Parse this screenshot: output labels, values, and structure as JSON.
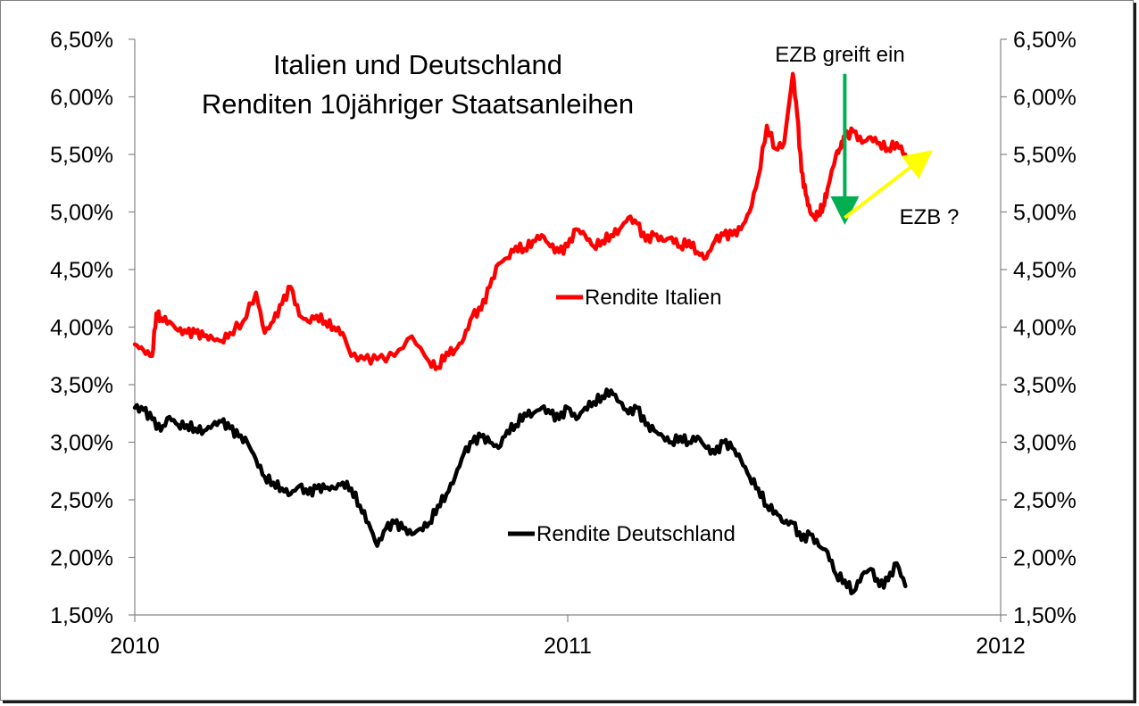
{
  "chart_data": {
    "type": "line",
    "title_lines": [
      "Italien  und Deutschland",
      "Renditen 10jähriger Staatsanleihen"
    ],
    "xlabel": "",
    "ylabel": "",
    "x_ticks": [
      "2010",
      "2011",
      "2012"
    ],
    "xlim": [
      2010.0,
      2012.0
    ],
    "ylim": [
      1.5,
      6.5
    ],
    "y_ticks": [
      "1,50%",
      "2,00%",
      "2,50%",
      "3,00%",
      "3,50%",
      "4,00%",
      "4,50%",
      "5,00%",
      "5,50%",
      "6,00%",
      "6,50%"
    ],
    "y_axes": [
      "left",
      "right"
    ],
    "grid": false,
    "series": [
      {
        "name": "Rendite Italien",
        "color": "#ff0000",
        "x": [
          2010.0,
          2010.02,
          2010.04,
          2010.05,
          2010.06,
          2010.08,
          2010.1,
          2010.12,
          2010.14,
          2010.16,
          2010.18,
          2010.2,
          2010.22,
          2010.25,
          2010.28,
          2010.3,
          2010.32,
          2010.34,
          2010.36,
          2010.38,
          2010.4,
          2010.42,
          2010.44,
          2010.46,
          2010.48,
          2010.5,
          2010.53,
          2010.56,
          2010.6,
          2010.64,
          2010.68,
          2010.7,
          2010.72,
          2010.74,
          2010.76,
          2010.78,
          2010.8,
          2010.82,
          2010.84,
          2010.86,
          2010.88,
          2010.9,
          2010.92,
          2010.94,
          2010.96,
          2010.98,
          2011.0,
          2011.02,
          2011.04,
          2011.06,
          2011.08,
          2011.1,
          2011.12,
          2011.14,
          2011.16,
          2011.18,
          2011.2,
          2011.22,
          2011.24,
          2011.26,
          2011.28,
          2011.3,
          2011.32,
          2011.34,
          2011.36,
          2011.38,
          2011.4,
          2011.42,
          2011.44,
          2011.46,
          2011.48,
          2011.5,
          2011.52,
          2011.53,
          2011.54,
          2011.55,
          2011.56,
          2011.57,
          2011.58,
          2011.59,
          2011.6,
          2011.62,
          2011.63,
          2011.64,
          2011.66,
          2011.68,
          2011.7,
          2011.72,
          2011.74,
          2011.76,
          2011.78
        ],
        "values": [
          3.85,
          3.8,
          3.75,
          4.12,
          4.08,
          4.05,
          3.97,
          3.95,
          3.95,
          3.92,
          3.9,
          3.88,
          3.95,
          4.05,
          4.3,
          3.95,
          4.05,
          4.2,
          4.35,
          4.1,
          4.05,
          4.1,
          4.05,
          4.0,
          3.95,
          3.75,
          3.72,
          3.72,
          3.75,
          3.92,
          3.7,
          3.65,
          3.78,
          3.8,
          3.9,
          4.1,
          4.15,
          4.35,
          4.55,
          4.6,
          4.7,
          4.68,
          4.75,
          4.8,
          4.7,
          4.65,
          4.7,
          4.85,
          4.8,
          4.7,
          4.75,
          4.8,
          4.85,
          4.95,
          4.9,
          4.75,
          4.8,
          4.75,
          4.78,
          4.7,
          4.75,
          4.65,
          4.6,
          4.75,
          4.8,
          4.8,
          4.85,
          5.0,
          5.3,
          5.75,
          5.55,
          5.6,
          6.2,
          5.85,
          5.35,
          5.15,
          5.0,
          4.95,
          5.0,
          5.05,
          5.2,
          5.5,
          5.55,
          5.65,
          5.7,
          5.6,
          5.65,
          5.6,
          5.55,
          5.6,
          5.5
        ]
      },
      {
        "name": "Rendite Deutschland",
        "color": "#000000",
        "x": [
          2010.0,
          2010.02,
          2010.04,
          2010.06,
          2010.08,
          2010.1,
          2010.12,
          2010.14,
          2010.16,
          2010.18,
          2010.2,
          2010.22,
          2010.24,
          2010.26,
          2010.28,
          2010.3,
          2010.32,
          2010.34,
          2010.36,
          2010.38,
          2010.4,
          2010.42,
          2010.44,
          2010.46,
          2010.48,
          2010.5,
          2010.52,
          2010.54,
          2010.56,
          2010.58,
          2010.6,
          2010.62,
          2010.64,
          2010.66,
          2010.68,
          2010.7,
          2010.72,
          2010.74,
          2010.76,
          2010.78,
          2010.8,
          2010.82,
          2010.84,
          2010.86,
          2010.88,
          2010.9,
          2010.92,
          2010.94,
          2010.96,
          2010.98,
          2011.0,
          2011.02,
          2011.04,
          2011.06,
          2011.08,
          2011.1,
          2011.12,
          2011.14,
          2011.16,
          2011.18,
          2011.2,
          2011.22,
          2011.24,
          2011.26,
          2011.28,
          2011.3,
          2011.32,
          2011.34,
          2011.36,
          2011.38,
          2011.4,
          2011.42,
          2011.44,
          2011.46,
          2011.48,
          2011.5,
          2011.52,
          2011.54,
          2011.56,
          2011.58,
          2011.6,
          2011.62,
          2011.64,
          2011.66,
          2011.68,
          2011.7,
          2011.72,
          2011.74,
          2011.76,
          2011.78
        ],
        "values": [
          3.3,
          3.28,
          3.2,
          3.1,
          3.22,
          3.15,
          3.15,
          3.12,
          3.1,
          3.15,
          3.18,
          3.12,
          3.05,
          3.0,
          2.85,
          2.7,
          2.65,
          2.6,
          2.55,
          2.62,
          2.55,
          2.6,
          2.6,
          2.6,
          2.65,
          2.6,
          2.45,
          2.3,
          2.1,
          2.25,
          2.3,
          2.25,
          2.2,
          2.25,
          2.3,
          2.45,
          2.55,
          2.7,
          2.9,
          3.0,
          3.05,
          3.0,
          2.95,
          3.1,
          3.15,
          3.25,
          3.25,
          3.3,
          3.25,
          3.2,
          3.3,
          3.2,
          3.3,
          3.35,
          3.4,
          3.45,
          3.35,
          3.25,
          3.3,
          3.15,
          3.1,
          3.05,
          3.0,
          3.05,
          3.0,
          3.05,
          2.95,
          2.9,
          3.0,
          2.95,
          2.85,
          2.7,
          2.6,
          2.45,
          2.4,
          2.3,
          2.3,
          2.15,
          2.2,
          2.1,
          2.05,
          1.85,
          1.8,
          1.7,
          1.85,
          1.9,
          1.75,
          1.8,
          1.95,
          1.75
        ]
      }
    ],
    "annotations": [
      {
        "text": "EZB greift ein",
        "arrow_color": "#00b050",
        "arrow_from": [
          2011.64,
          6.2
        ],
        "arrow_to": [
          2011.64,
          4.95
        ]
      },
      {
        "text": "EZB ?",
        "arrow_color": "#ffff00",
        "arrow_from": [
          2011.64,
          4.95
        ],
        "arrow_to": [
          2011.83,
          5.5
        ]
      }
    ]
  }
}
